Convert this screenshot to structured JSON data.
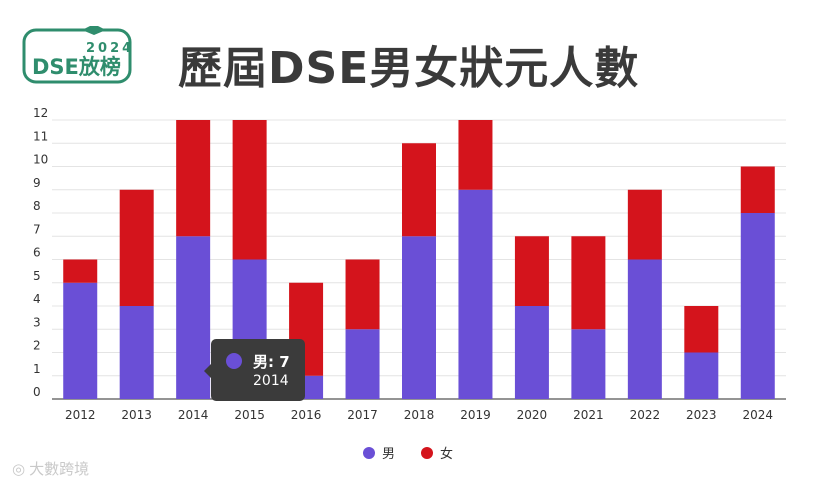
{
  "header": {
    "logo_line1": "2024",
    "logo_line2": "DSE放榜",
    "title": "歷屆DSE男女狀元人數"
  },
  "colors": {
    "male": "#6a4fd6",
    "female": "#d4141c",
    "logo_green": "#2f8d6d"
  },
  "chart_data": {
    "type": "bar",
    "stacked": true,
    "title": "歷屆DSE男女狀元人數",
    "categories": [
      "2012",
      "2013",
      "2014",
      "2015",
      "2016",
      "2017",
      "2018",
      "2019",
      "2020",
      "2021",
      "2022",
      "2023",
      "2024"
    ],
    "series": [
      {
        "name": "男",
        "color": "#6a4fd6",
        "values": [
          5,
          4,
          7,
          6,
          1,
          3,
          7,
          9,
          4,
          3,
          6,
          2,
          8
        ]
      },
      {
        "name": "女",
        "color": "#d4141c",
        "values": [
          1,
          5,
          5,
          6,
          4,
          3,
          4,
          3,
          3,
          4,
          3,
          2,
          2
        ]
      }
    ],
    "ylim": [
      0,
      12
    ],
    "yticks": [
      0,
      1,
      2,
      3,
      4,
      5,
      6,
      7,
      8,
      9,
      10,
      11,
      12
    ],
    "grid": true,
    "legend_position": "bottom"
  },
  "tooltip": {
    "label": "男: 7",
    "year": "2014"
  },
  "watermark": "大數跨境"
}
